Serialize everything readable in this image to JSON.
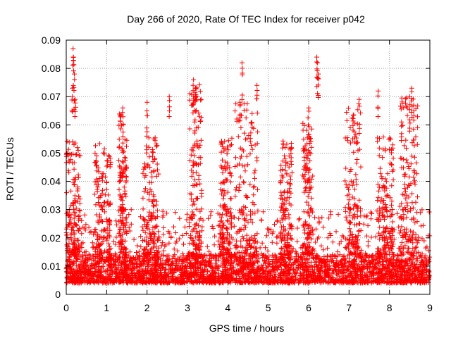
{
  "chart_data": {
    "type": "scatter",
    "title": "Day 266 of 2020, Rate Of TEC Index for receiver p042",
    "xlabel": "GPS time / hours",
    "ylabel": "ROTI / TECUs",
    "xlim": [
      0,
      9
    ],
    "ylim": [
      0,
      0.09
    ],
    "xticks": [
      "0",
      "1",
      "2",
      "3",
      "4",
      "5",
      "6",
      "7",
      "8",
      "9"
    ],
    "yticks": [
      "0",
      "0.01",
      "0.02",
      "0.03",
      "0.04",
      "0.05",
      "0.06",
      "0.07",
      "0.08",
      "0.09"
    ],
    "grid": true,
    "marker": "+",
    "series_color": "#ff0000",
    "notable_points": [
      {
        "x": 0.17,
        "y": 0.087
      },
      {
        "x": 0.18,
        "y": 0.084
      },
      {
        "x": 0.2,
        "y": 0.078
      },
      {
        "x": 0.15,
        "y": 0.073
      },
      {
        "x": 0.22,
        "y": 0.069
      },
      {
        "x": 1.4,
        "y": 0.066
      },
      {
        "x": 2.0,
        "y": 0.068
      },
      {
        "x": 2.55,
        "y": 0.07
      },
      {
        "x": 3.15,
        "y": 0.076
      },
      {
        "x": 3.2,
        "y": 0.073
      },
      {
        "x": 3.18,
        "y": 0.061
      },
      {
        "x": 4.35,
        "y": 0.082
      },
      {
        "x": 4.72,
        "y": 0.074
      },
      {
        "x": 4.3,
        "y": 0.068
      },
      {
        "x": 4.6,
        "y": 0.064
      },
      {
        "x": 6.0,
        "y": 0.066
      },
      {
        "x": 6.2,
        "y": 0.084
      },
      {
        "x": 6.22,
        "y": 0.082
      },
      {
        "x": 6.24,
        "y": 0.078
      },
      {
        "x": 7.25,
        "y": 0.069
      },
      {
        "x": 7.72,
        "y": 0.072
      },
      {
        "x": 8.55,
        "y": 0.073
      },
      {
        "x": 8.5,
        "y": 0.07
      },
      {
        "x": 8.6,
        "y": 0.067
      },
      {
        "x": 8.3,
        "y": 0.061
      }
    ],
    "clusters": [
      {
        "x_start": 0.0,
        "x_end": 0.35,
        "y_max": 0.055
      },
      {
        "x_start": 0.7,
        "x_end": 1.1,
        "y_max": 0.056
      },
      {
        "x_start": 1.3,
        "x_end": 1.5,
        "y_max": 0.065
      },
      {
        "x_start": 1.9,
        "x_end": 2.3,
        "y_max": 0.058
      },
      {
        "x_start": 3.05,
        "x_end": 3.35,
        "y_max": 0.075
      },
      {
        "x_start": 3.8,
        "x_end": 4.1,
        "y_max": 0.056
      },
      {
        "x_start": 4.15,
        "x_end": 4.75,
        "y_max": 0.07
      },
      {
        "x_start": 5.3,
        "x_end": 5.6,
        "y_max": 0.056
      },
      {
        "x_start": 5.85,
        "x_end": 6.1,
        "y_max": 0.063
      },
      {
        "x_start": 6.9,
        "x_end": 7.3,
        "y_max": 0.066
      },
      {
        "x_start": 7.7,
        "x_end": 8.1,
        "y_max": 0.056
      },
      {
        "x_start": 8.25,
        "x_end": 8.7,
        "y_max": 0.07
      }
    ],
    "baseline": {
      "y_min": 0.004,
      "y_max": 0.014,
      "typical_max": 0.03
    }
  }
}
